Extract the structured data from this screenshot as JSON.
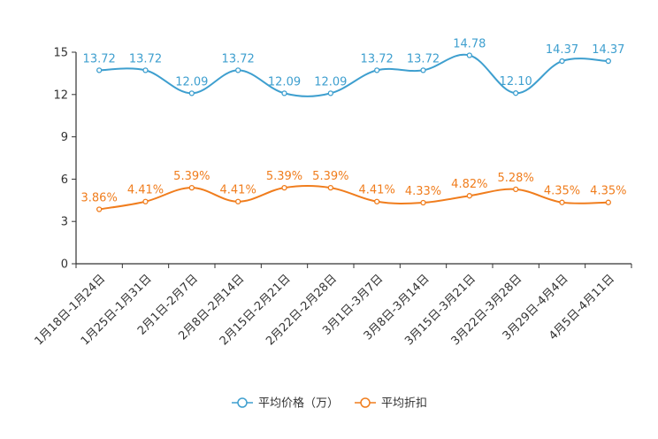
{
  "chart_data": {
    "type": "line",
    "categories": [
      "1月18日-1月24日",
      "1月25日-1月31日",
      "2月1日-2月7日",
      "2月8日-2月14日",
      "2月15日-2月21日",
      "2月22日-2月28日",
      "3月1日-3月7日",
      "3月8日-3月14日",
      "3月15日-3月21日",
      "3月22日-3月28日",
      "3月29日-4月4日",
      "4月5日-4月11日"
    ],
    "ylim": [
      0,
      15
    ],
    "yticks": [
      "0",
      "3",
      "6",
      "9",
      "12",
      "15"
    ],
    "ytick_values": [
      0,
      3,
      6,
      9,
      12,
      15
    ],
    "series": [
      {
        "name": "平均价格（万）",
        "color": "#3e9fcf",
        "values": [
          13.72,
          13.72,
          12.09,
          13.72,
          12.09,
          12.09,
          13.72,
          13.72,
          14.78,
          12.1,
          14.37,
          14.37
        ],
        "labels": [
          "13.72",
          "13.72",
          "12.09",
          "13.72",
          "12.09",
          "12.09",
          "13.72",
          "13.72",
          "14.78",
          "12.10",
          "14.37",
          "14.37"
        ]
      },
      {
        "name": "平均折扣",
        "color": "#f07d1d",
        "values": [
          3.86,
          4.41,
          5.39,
          4.41,
          5.39,
          5.39,
          4.41,
          4.33,
          4.82,
          5.28,
          4.35,
          4.35
        ],
        "labels": [
          "3.86%",
          "4.41%",
          "5.39%",
          "4.41%",
          "5.39%",
          "5.39%",
          "4.41%",
          "4.33%",
          "4.82%",
          "5.28%",
          "4.35%",
          "4.35%"
        ]
      }
    ],
    "legend_position": "bottom-center"
  }
}
